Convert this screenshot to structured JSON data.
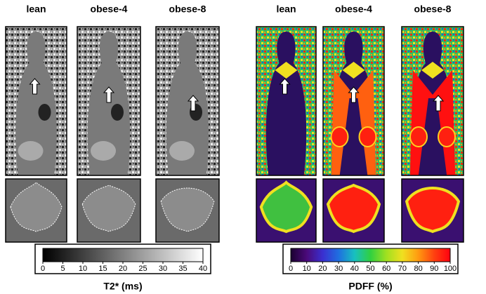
{
  "columns": [
    "lean",
    "obese-4",
    "obese-8",
    "lean",
    "obese-4",
    "obese-8"
  ],
  "colorbars": [
    {
      "range": [
        0,
        40
      ],
      "ticks": [
        0,
        5,
        10,
        15,
        20,
        25,
        30,
        35,
        40
      ],
      "label": "T2* (ms)"
    },
    {
      "range": [
        0,
        100
      ],
      "ticks": [
        0,
        10,
        20,
        30,
        40,
        50,
        60,
        70,
        80,
        90,
        100
      ],
      "label": "PDFF (%)"
    }
  ]
}
